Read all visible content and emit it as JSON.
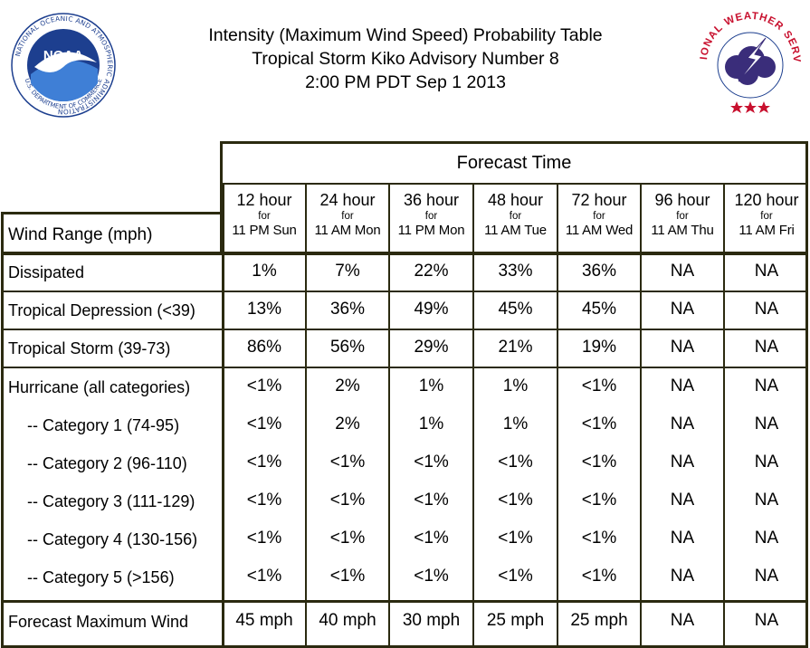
{
  "header": {
    "title_line1": "Intensity (Maximum Wind Speed) Probability Table",
    "title_line2": "Tropical Storm Kiko Advisory Number 8",
    "title_line3": "2:00 PM PDT Sep 1 2013"
  },
  "logos": {
    "noaa_text": "NOAA",
    "noaa_ring_text": "NATIONAL OCEANIC AND ATMOSPHERIC ADMINISTRATION",
    "noaa_bottom_text": "U.S. DEPARTMENT OF COMMERCE",
    "nws_ring_text": "NATIONAL WEATHER SERVICE",
    "noaa_color": "#1d3f8f",
    "nws_color": "#c8102e"
  },
  "table": {
    "forecast_time_label": "Forecast Time",
    "wind_range_label": "Wind Range (mph)",
    "for_label": "for",
    "columns": [
      {
        "hours": "12 hour",
        "when": "11 PM Sun"
      },
      {
        "hours": "24 hour",
        "when": "11 AM Mon"
      },
      {
        "hours": "36 hour",
        "when": "11 PM Mon"
      },
      {
        "hours": "48 hour",
        "when": "11 AM Tue"
      },
      {
        "hours": "72 hour",
        "when": "11 AM Wed"
      },
      {
        "hours": "96 hour",
        "when": "11 AM Thu"
      },
      {
        "hours": "120 hour",
        "when": "11 AM Fri"
      }
    ],
    "rows": [
      {
        "label": "Dissipated",
        "values": [
          "1%",
          "7%",
          "22%",
          "33%",
          "36%",
          "NA",
          "NA"
        ]
      },
      {
        "label": "Tropical Depression (<39)",
        "values": [
          "13%",
          "36%",
          "49%",
          "45%",
          "45%",
          "NA",
          "NA"
        ]
      },
      {
        "label": "Tropical Storm (39-73)",
        "values": [
          "86%",
          "56%",
          "29%",
          "21%",
          "19%",
          "NA",
          "NA"
        ]
      },
      {
        "label": "Hurricane (all categories)",
        "values": [
          "<1%",
          "2%",
          "1%",
          "1%",
          "<1%",
          "NA",
          "NA"
        ]
      },
      {
        "label": "-- Category 1 (74-95)",
        "values": [
          "<1%",
          "2%",
          "1%",
          "1%",
          "<1%",
          "NA",
          "NA"
        ]
      },
      {
        "label": "-- Category 2 (96-110)",
        "values": [
          "<1%",
          "<1%",
          "<1%",
          "<1%",
          "<1%",
          "NA",
          "NA"
        ]
      },
      {
        "label": "-- Category 3 (111-129)",
        "values": [
          "<1%",
          "<1%",
          "<1%",
          "<1%",
          "<1%",
          "NA",
          "NA"
        ]
      },
      {
        "label": "-- Category 4 (130-156)",
        "values": [
          "<1%",
          "<1%",
          "<1%",
          "<1%",
          "<1%",
          "NA",
          "NA"
        ]
      },
      {
        "label": "-- Category 5 (>156)",
        "values": [
          "<1%",
          "<1%",
          "<1%",
          "<1%",
          "<1%",
          "NA",
          "NA"
        ]
      },
      {
        "label": "Forecast Maximum Wind",
        "values": [
          "45 mph",
          "40 mph",
          "30 mph",
          "25 mph",
          "25 mph",
          "NA",
          "NA"
        ]
      }
    ]
  }
}
